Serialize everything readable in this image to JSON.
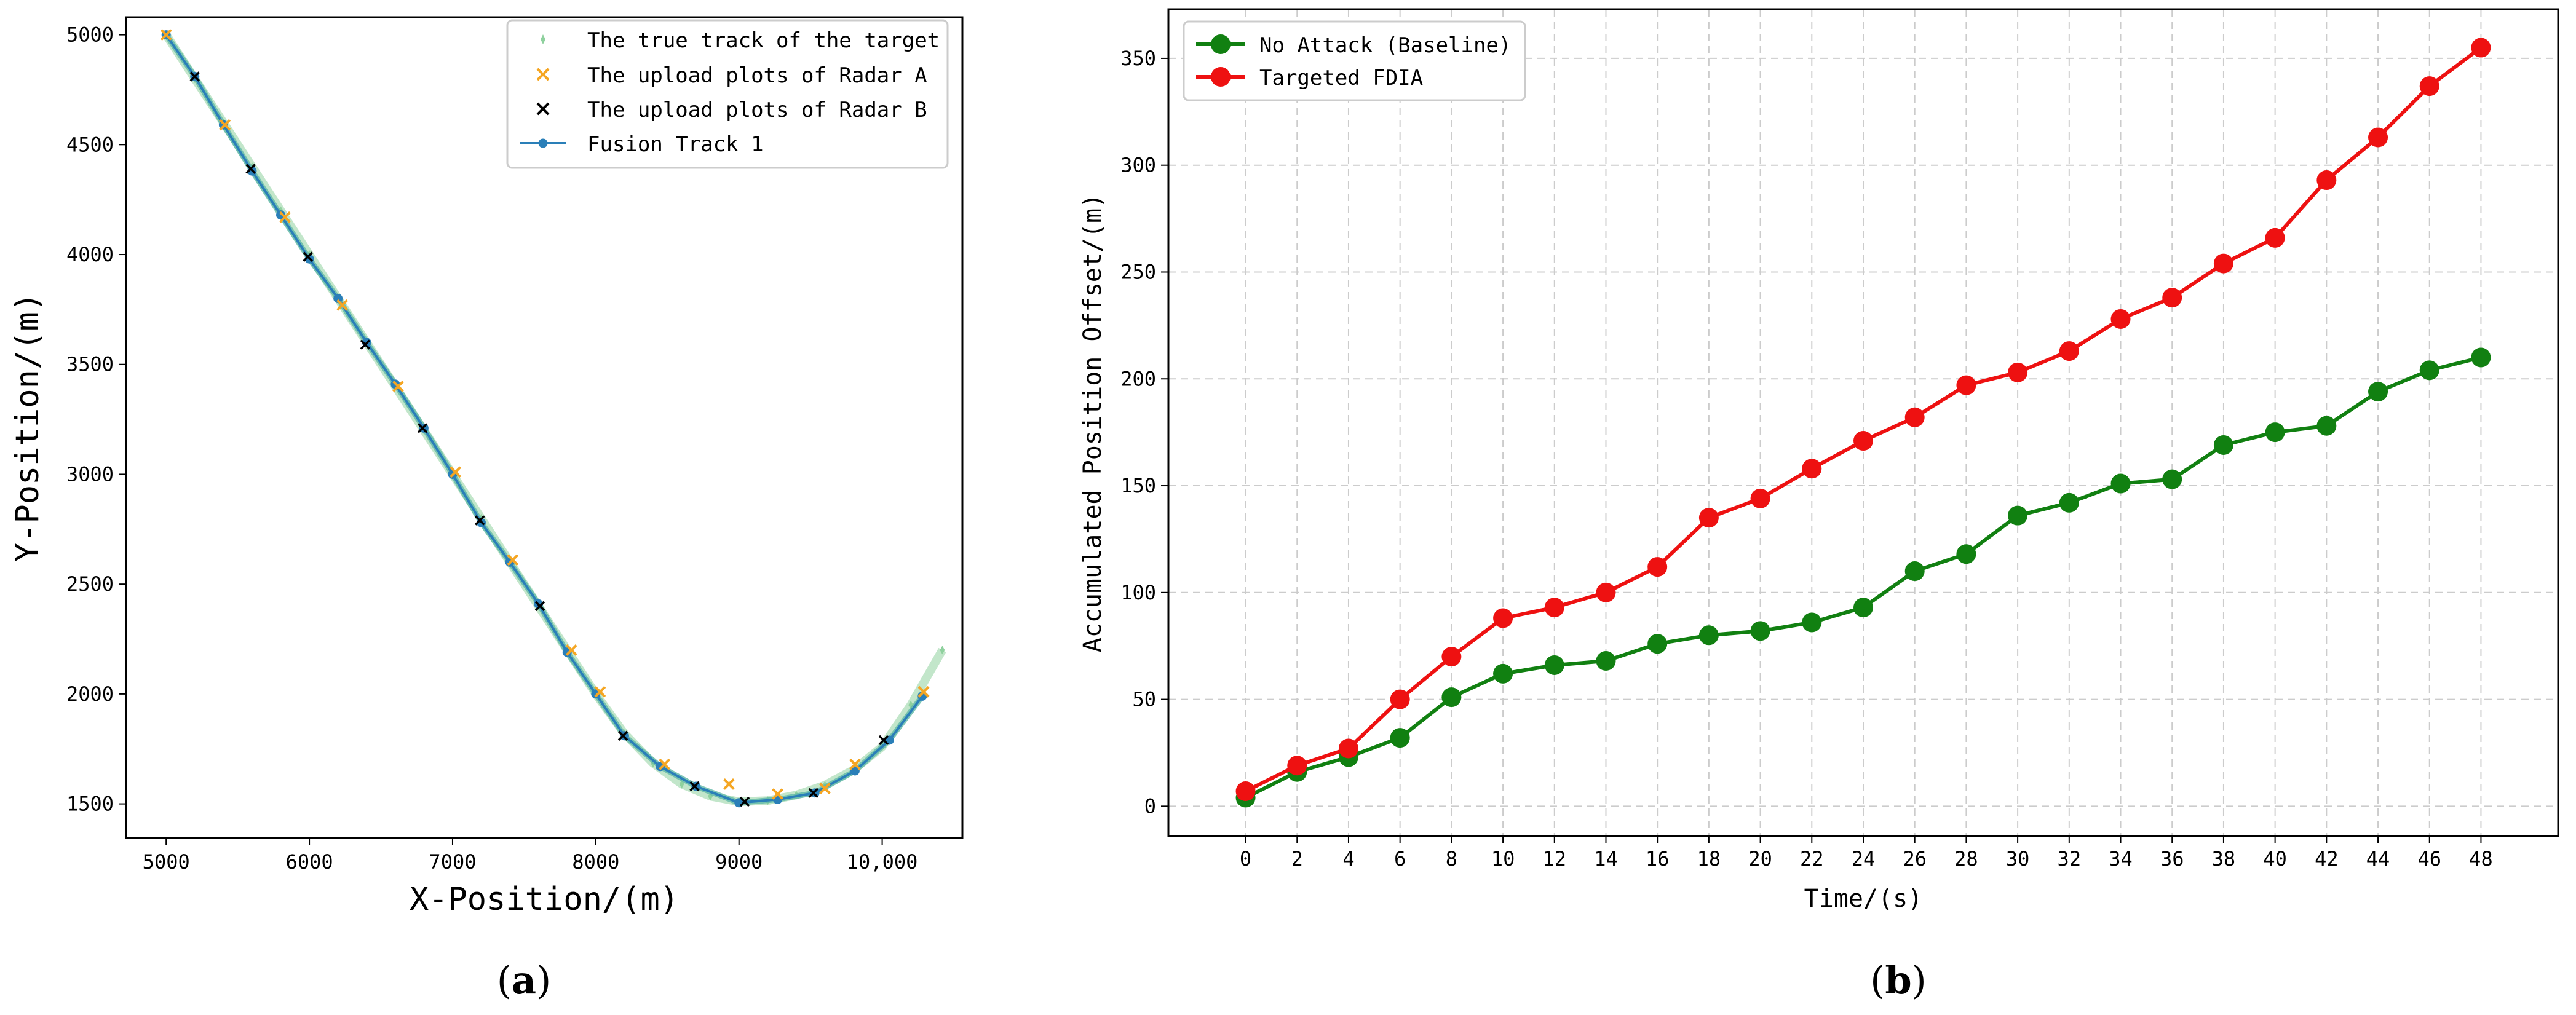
{
  "chart_data": [
    {
      "type": "line",
      "caption": {
        "open": "(",
        "letter": "a",
        "close": ")"
      },
      "xlabel": "X-Position/(m)",
      "ylabel": "Y-Position/(m)",
      "xlim": [
        4720,
        10560
      ],
      "ylim": [
        1345,
        5080
      ],
      "xticks": [
        5000,
        6000,
        7000,
        8000,
        9000,
        10000
      ],
      "xtick_labels": [
        "5000",
        "6000",
        "7000",
        "8000",
        "9000",
        "10,000"
      ],
      "yticks": [
        1500,
        2000,
        2500,
        3000,
        3500,
        4000,
        4500,
        5000
      ],
      "ytick_labels": [
        "1500",
        "2000",
        "2500",
        "3000",
        "3500",
        "4000",
        "4500",
        "5000"
      ],
      "grid": false,
      "legend_position": "top-right",
      "legend": [
        "The true track of the target",
        "The upload plots of Radar A",
        "The upload plots of Radar B",
        "Fusion Track 1"
      ],
      "colors": {
        "true_track": "#8fd19e",
        "radar_a": "#f5a623",
        "radar_b": "#000000",
        "fusion": "#2a7fb8",
        "fusion_halo": "#5fb8a6"
      },
      "series": [
        {
          "name": "The true track of the target",
          "x": [
            5000,
            5200,
            5400,
            5600,
            5800,
            6000,
            6200,
            6400,
            6600,
            6800,
            7000,
            7200,
            7400,
            7600,
            7800,
            8000,
            8200,
            8400,
            8600,
            8800,
            9000,
            9200,
            9400,
            9600,
            9800,
            10000,
            10200,
            10420
          ],
          "y": [
            5000,
            4800,
            4600,
            4400,
            4200,
            4000,
            3800,
            3600,
            3400,
            3200,
            3000,
            2800,
            2600,
            2400,
            2200,
            2000,
            1820,
            1685,
            1590,
            1535,
            1510,
            1515,
            1540,
            1585,
            1655,
            1760,
            1950,
            2200
          ]
        },
        {
          "name": "The upload plots of Radar A",
          "x": [
            5000,
            5410,
            5830,
            6230,
            6620,
            7020,
            7420,
            7830,
            8030,
            8480,
            8930,
            9270,
            9600,
            9810,
            10290
          ],
          "y": [
            5000,
            4590,
            4170,
            3770,
            3400,
            3010,
            2610,
            2200,
            2010,
            1680,
            1590,
            1545,
            1570,
            1680,
            2010
          ]
        },
        {
          "name": "The upload plots of Radar B",
          "x": [
            5200,
            5590,
            5990,
            6390,
            6790,
            7190,
            7610,
            8190,
            8690,
            9040,
            9520,
            10010
          ],
          "y": [
            4810,
            4390,
            3990,
            3590,
            3210,
            2790,
            2400,
            1810,
            1580,
            1510,
            1550,
            1790
          ]
        },
        {
          "name": "Fusion Track 1",
          "x": [
            5000,
            5200,
            5400,
            5600,
            5800,
            6000,
            6200,
            6400,
            6600,
            6800,
            7000,
            7200,
            7400,
            7600,
            7800,
            8000,
            8200,
            8450,
            8700,
            9000,
            9270,
            9530,
            9810,
            10050,
            10280
          ],
          "y": [
            5000,
            4810,
            4590,
            4380,
            4180,
            3980,
            3800,
            3600,
            3410,
            3210,
            3000,
            2780,
            2600,
            2410,
            2190,
            2000,
            1810,
            1670,
            1580,
            1505,
            1520,
            1550,
            1650,
            1790,
            1990
          ]
        }
      ]
    },
    {
      "type": "line",
      "caption": {
        "open": "(",
        "letter": "b",
        "close": ")"
      },
      "xlabel": "Time/(s)",
      "ylabel": "Accumulated Position Offset/(m)",
      "xlim": [
        -3,
        51
      ],
      "ylim": [
        -14,
        373
      ],
      "xticks": [
        0,
        2,
        4,
        6,
        8,
        10,
        12,
        14,
        16,
        18,
        20,
        22,
        24,
        26,
        28,
        30,
        32,
        34,
        36,
        38,
        40,
        42,
        44,
        46,
        48
      ],
      "yticks": [
        0,
        50,
        100,
        150,
        200,
        250,
        300,
        350
      ],
      "grid": true,
      "legend_position": "top-left",
      "legend": [
        "No Attack (Baseline)",
        "Targeted FDIA"
      ],
      "colors": {
        "baseline": "#118011",
        "fdia": "#ee1111",
        "grid": "#cccccc"
      },
      "categories": [
        0,
        2,
        4,
        6,
        8,
        10,
        12,
        14,
        16,
        18,
        20,
        22,
        24,
        26,
        28,
        30,
        32,
        34,
        36,
        38,
        40,
        42,
        44,
        46,
        48
      ],
      "series": [
        {
          "name": "No Attack (Baseline)",
          "values": [
            4,
            16,
            23,
            32,
            51,
            62,
            66,
            68,
            76,
            80,
            82,
            86,
            93,
            110,
            118,
            136,
            142,
            151,
            153,
            169,
            175,
            178,
            194,
            204,
            210
          ]
        },
        {
          "name": "Targeted FDIA",
          "values": [
            7,
            19,
            27,
            50,
            70,
            88,
            93,
            100,
            112,
            135,
            144,
            158,
            171,
            182,
            197,
            203,
            213,
            228,
            238,
            254,
            266,
            293,
            313,
            337,
            355
          ]
        }
      ]
    }
  ]
}
